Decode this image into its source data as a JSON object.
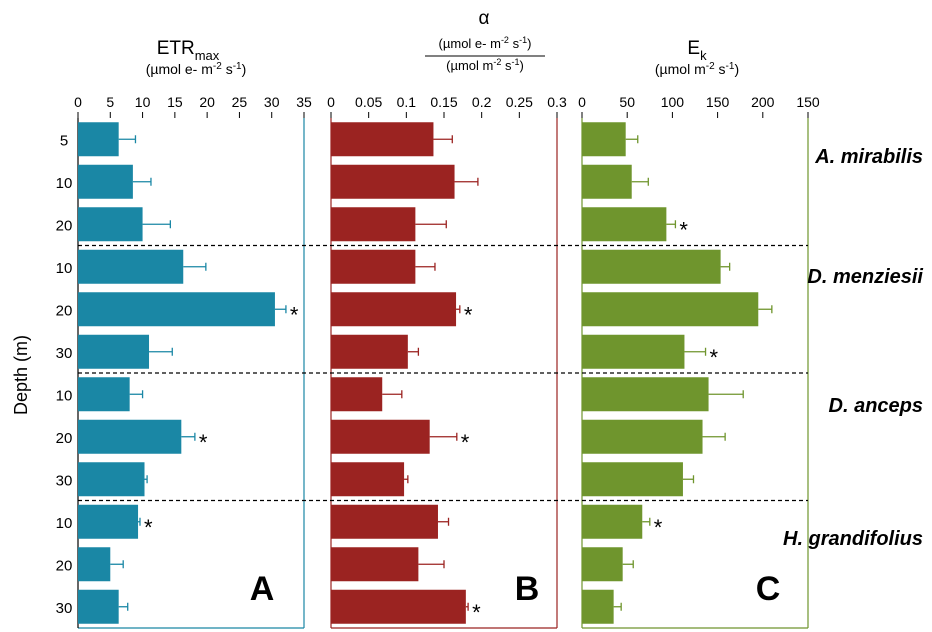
{
  "y_axis_label": "Depth (m)",
  "species": [
    "A. mirabilis",
    "D. menziesii",
    "D. anceps",
    "H. grandifolius"
  ],
  "depth_labels": [
    "5",
    "10",
    "20",
    "10",
    "20",
    "30",
    "10",
    "20",
    "30",
    "10",
    "20",
    "30"
  ],
  "panels": [
    {
      "letter": "A",
      "title_main": "ETR",
      "title_sub": "max",
      "unit_parts": [
        "(µmol e- m",
        "-2",
        " s",
        "-1",
        ")"
      ],
      "color": "#1a87a5"
    },
    {
      "letter": "B",
      "title_main": "α",
      "unit_top_parts": [
        "(µmol e- m",
        "-2",
        " s",
        "-1",
        ")"
      ],
      "unit_bottom_parts": [
        "(µmol m",
        "-2",
        " s",
        "-1",
        ")"
      ],
      "color": "#9b2321"
    },
    {
      "letter": "C",
      "title_main": "E",
      "title_sub": "k",
      "unit_parts": [
        "(µmol m",
        "-2",
        " s",
        "-1",
        ")"
      ],
      "color": "#6f952d"
    }
  ],
  "chart_data": [
    {
      "type": "bar",
      "orientation": "horizontal",
      "panel": "A",
      "categories": [
        "5",
        "10",
        "20",
        "10",
        "20",
        "30",
        "10",
        "20",
        "30",
        "10",
        "20",
        "30"
      ],
      "group_labels": [
        "A. mirabilis",
        "D. menziesii",
        "D. anceps",
        "H. grandifolius"
      ],
      "values": [
        6.3,
        8.5,
        10.0,
        16.3,
        30.5,
        11.0,
        8.0,
        16.0,
        10.3,
        9.3,
        5.0,
        6.3
      ],
      "errors": [
        2.6,
        2.8,
        4.3,
        3.5,
        1.7,
        3.6,
        2.0,
        2.1,
        0.4,
        0.3,
        2.0,
        1.4
      ],
      "significant": [
        false,
        false,
        false,
        false,
        true,
        false,
        false,
        true,
        false,
        true,
        false,
        false
      ],
      "xlim": [
        0,
        35
      ],
      "xticks": [
        "0",
        "5",
        "10",
        "15",
        "20",
        "25",
        "30",
        "35"
      ],
      "ylabel": "Depth (m)"
    },
    {
      "type": "bar",
      "orientation": "horizontal",
      "panel": "B",
      "categories": [
        "5",
        "10",
        "20",
        "10",
        "20",
        "30",
        "10",
        "20",
        "30",
        "10",
        "20",
        "30"
      ],
      "group_labels": [
        "A. mirabilis",
        "D. menziesii",
        "D. anceps",
        "H. grandifolius"
      ],
      "values": [
        0.136,
        0.164,
        0.112,
        0.112,
        0.166,
        0.102,
        0.068,
        0.131,
        0.097,
        0.142,
        0.116,
        0.179
      ],
      "errors": [
        0.025,
        0.031,
        0.041,
        0.026,
        0.005,
        0.014,
        0.026,
        0.036,
        0.005,
        0.014,
        0.034,
        0.003
      ],
      "significant": [
        false,
        false,
        false,
        false,
        true,
        false,
        false,
        true,
        false,
        false,
        false,
        true
      ],
      "xlim": [
        0,
        0.3
      ],
      "xticks": [
        "0",
        "0.05",
        "0.1",
        "0.15",
        "0.2",
        "0.25",
        "0.3"
      ]
    },
    {
      "type": "bar",
      "orientation": "horizontal",
      "panel": "C",
      "categories": [
        "5",
        "10",
        "20",
        "10",
        "20",
        "30",
        "10",
        "20",
        "30",
        "10",
        "20",
        "30"
      ],
      "group_labels": [
        "A. mirabilis",
        "D. menziesii",
        "D. anceps",
        "H. grandifolius"
      ],
      "values": [
        29,
        33,
        56,
        92,
        117,
        68,
        84,
        80,
        67,
        40,
        27,
        21
      ],
      "errors": [
        8,
        11,
        6,
        6,
        9,
        14,
        23,
        15,
        7,
        5,
        7,
        5
      ],
      "significant": [
        false,
        false,
        true,
        false,
        false,
        true,
        false,
        false,
        false,
        true,
        false,
        false
      ],
      "xlim": [
        0,
        150
      ],
      "xticks": [
        "0",
        "50",
        "100",
        "150",
        "200",
        "150"
      ]
    }
  ]
}
